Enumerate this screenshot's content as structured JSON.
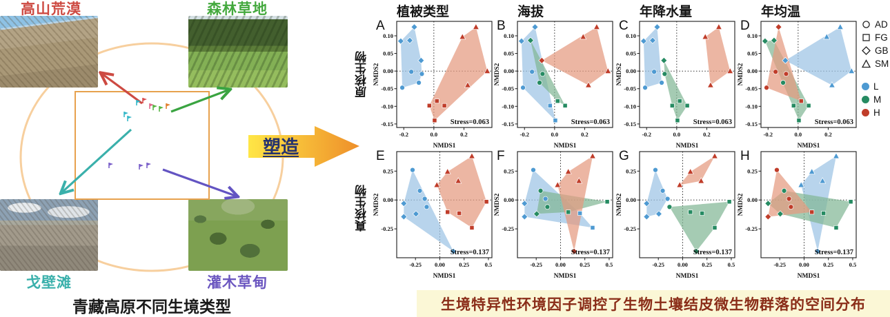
{
  "left_panel": {
    "caption": "青藏高原不同生境类型",
    "habitats": [
      {
        "name": "高山荒漠",
        "color": "#cd4a42",
        "position": "top-left"
      },
      {
        "name": "森林草地",
        "color": "#44a93e",
        "position": "top-right"
      },
      {
        "name": "戈壁滩",
        "color": "#3ab0ab",
        "position": "bottom-left"
      },
      {
        "name": "灌木草甸",
        "color": "#6b56c0",
        "position": "bottom-right"
      }
    ]
  },
  "arrow": {
    "label": "塑造",
    "gradient": [
      "#ffe646",
      "#ee8f2a"
    ],
    "text_color": "#26336e"
  },
  "charts": {
    "row_labels": [
      "原核生物",
      "真核生物"
    ],
    "col_titles": [
      "植被类型",
      "海拔",
      "年降水量",
      "年均温"
    ],
    "colors": {
      "L": "#4e9ad2",
      "M": "#268b62",
      "H": "#c03d2a"
    },
    "fills": {
      "L": "#9cc3e5",
      "M": "#82b795",
      "H": "#e59a7f"
    },
    "legend": {
      "shapes": [
        {
          "shape": "circle",
          "label": "AD"
        },
        {
          "shape": "square",
          "label": "FG"
        },
        {
          "shape": "diamond",
          "label": "GB"
        },
        {
          "shape": "triangle",
          "label": "SM"
        }
      ],
      "groups": [
        {
          "key": "L",
          "hex": "#4e9ad2"
        },
        {
          "key": "M",
          "hex": "#268b62"
        },
        {
          "key": "H",
          "hex": "#c03d2a"
        }
      ]
    }
  },
  "footer": {
    "caption": "生境特异性环境因子调控了生物土壤结皮微生物群落的空间分布"
  },
  "chart_data": [
    {
      "id": "A",
      "type": "scatter",
      "xlabel": "NMDS1",
      "ylabel": "NMDS2",
      "stress": "Stress=0.063",
      "xlim": [
        -0.247,
        0.386
      ],
      "ylim": [
        -0.16,
        0.141
      ],
      "xticks": [
        "-0.2",
        "0.0",
        "0.2"
      ],
      "yticks": [
        "0.10",
        "0.05",
        "0.00",
        "-0.05",
        "-0.10",
        "-0.15"
      ],
      "points": [
        [
          -0.22,
          0.085,
          "d",
          "L"
        ],
        [
          -0.16,
          0.087,
          "d",
          "L"
        ],
        [
          -0.13,
          0.125,
          "d",
          "L"
        ],
        [
          -0.085,
          0.03,
          "d",
          "L"
        ],
        [
          -0.15,
          -0.002,
          "o",
          "L"
        ],
        [
          -0.08,
          -0.008,
          "o",
          "L"
        ],
        [
          -0.1,
          -0.033,
          "o",
          "L"
        ],
        [
          -0.21,
          -0.047,
          "o",
          "L"
        ],
        [
          0.02,
          -0.085,
          "s",
          "H"
        ],
        [
          -0.03,
          -0.098,
          "s",
          "H"
        ],
        [
          0.07,
          -0.098,
          "s",
          "H"
        ],
        [
          0.005,
          -0.14,
          "s",
          "H"
        ],
        [
          0.19,
          0.097,
          "t",
          "H"
        ],
        [
          0.28,
          0.125,
          "t",
          "H"
        ],
        [
          0.355,
          0.0,
          "t",
          "H"
        ],
        [
          0.225,
          -0.04,
          "t",
          "H"
        ]
      ]
    },
    {
      "id": "B",
      "type": "scatter",
      "xlabel": "NMDS1",
      "ylabel": "NMDS2",
      "stress": "Stress=0.063",
      "xlim": [
        -0.247,
        0.386
      ],
      "ylim": [
        -0.16,
        0.141
      ],
      "xticks": [
        "-0.2",
        "0.0",
        "0.2"
      ],
      "yticks": [
        "0.10",
        "0.05",
        "0.00",
        "-0.05",
        "-0.10",
        "-0.15"
      ],
      "points": [
        [
          -0.22,
          0.085,
          "d",
          "L"
        ],
        [
          -0.16,
          0.087,
          "d",
          "M"
        ],
        [
          -0.13,
          0.125,
          "d",
          "L"
        ],
        [
          -0.085,
          0.03,
          "d",
          "H"
        ],
        [
          -0.15,
          -0.002,
          "o",
          "L"
        ],
        [
          -0.08,
          -0.008,
          "o",
          "M"
        ],
        [
          -0.1,
          -0.033,
          "o",
          "M"
        ],
        [
          -0.21,
          -0.047,
          "o",
          "L"
        ],
        [
          0.02,
          -0.085,
          "s",
          "M"
        ],
        [
          -0.03,
          -0.098,
          "s",
          "L"
        ],
        [
          0.07,
          -0.098,
          "s",
          "M"
        ],
        [
          0.005,
          -0.14,
          "s",
          "L"
        ],
        [
          0.19,
          0.097,
          "t",
          "H"
        ],
        [
          0.28,
          0.125,
          "t",
          "H"
        ],
        [
          0.355,
          0.0,
          "t",
          "H"
        ],
        [
          0.225,
          -0.04,
          "t",
          "H"
        ]
      ]
    },
    {
      "id": "C",
      "type": "scatter",
      "xlabel": "NMDS1",
      "ylabel": "NMDS2",
      "stress": "Stress=0.063",
      "xlim": [
        -0.247,
        0.386
      ],
      "ylim": [
        -0.16,
        0.141
      ],
      "xticks": [
        "-0.2",
        "0.0",
        "0.2"
      ],
      "yticks": [
        "0.10",
        "0.05",
        "0.00",
        "-0.05",
        "-0.10",
        "-0.15"
      ],
      "points": [
        [
          -0.22,
          0.085,
          "d",
          "L"
        ],
        [
          -0.16,
          0.087,
          "d",
          "L"
        ],
        [
          -0.13,
          0.125,
          "d",
          "L"
        ],
        [
          -0.085,
          0.03,
          "d",
          "M"
        ],
        [
          -0.15,
          -0.002,
          "o",
          "L"
        ],
        [
          -0.08,
          -0.008,
          "o",
          "M"
        ],
        [
          -0.1,
          -0.033,
          "o",
          "L"
        ],
        [
          -0.21,
          -0.047,
          "o",
          "L"
        ],
        [
          0.02,
          -0.085,
          "s",
          "M"
        ],
        [
          -0.03,
          -0.098,
          "s",
          "M"
        ],
        [
          0.07,
          -0.098,
          "s",
          "M"
        ],
        [
          0.005,
          -0.14,
          "s",
          "M"
        ],
        [
          0.19,
          0.097,
          "t",
          "H"
        ],
        [
          0.28,
          0.125,
          "t",
          "H"
        ],
        [
          0.355,
          0.0,
          "t",
          "H"
        ],
        [
          0.225,
          -0.04,
          "t",
          "H"
        ]
      ]
    },
    {
      "id": "D",
      "type": "scatter",
      "xlabel": "NMDS1",
      "ylabel": "NMDS2",
      "stress": "Stress=0.063",
      "xlim": [
        -0.247,
        0.386
      ],
      "ylim": [
        -0.16,
        0.141
      ],
      "xticks": [
        "-0.2",
        "0.0",
        "0.2"
      ],
      "yticks": [
        "0.10",
        "0.05",
        "0.00",
        "-0.05",
        "-0.10",
        "-0.15"
      ],
      "points": [
        [
          -0.22,
          0.085,
          "d",
          "M"
        ],
        [
          -0.16,
          0.087,
          "d",
          "M"
        ],
        [
          -0.13,
          0.125,
          "d",
          "H"
        ],
        [
          -0.085,
          0.03,
          "d",
          "L"
        ],
        [
          -0.15,
          -0.002,
          "o",
          "H"
        ],
        [
          -0.08,
          -0.008,
          "o",
          "H"
        ],
        [
          -0.1,
          -0.033,
          "o",
          "M"
        ],
        [
          -0.21,
          -0.047,
          "o",
          "H"
        ],
        [
          0.02,
          -0.085,
          "s",
          "H"
        ],
        [
          -0.03,
          -0.098,
          "s",
          "M"
        ],
        [
          0.07,
          -0.098,
          "s",
          "M"
        ],
        [
          0.005,
          -0.14,
          "s",
          "M"
        ],
        [
          0.19,
          0.097,
          "t",
          "L"
        ],
        [
          0.28,
          0.125,
          "t",
          "L"
        ],
        [
          0.355,
          0.0,
          "t",
          "L"
        ],
        [
          0.225,
          -0.04,
          "t",
          "L"
        ]
      ]
    },
    {
      "id": "E",
      "type": "scatter",
      "xlabel": "NMDS1",
      "ylabel": "NMDS2",
      "stress": "Stress=0.137",
      "xlim": [
        -0.443,
        0.536
      ],
      "ylim": [
        -0.5,
        0.419
      ],
      "xticks": [
        "-0.25",
        "0.00",
        "0.25",
        "0.5"
      ],
      "yticks": [
        "0.25",
        "0.00",
        "-0.25"
      ],
      "points": [
        [
          -0.28,
          0.26,
          "o",
          "L"
        ],
        [
          -0.205,
          0.08,
          "o",
          "L"
        ],
        [
          -0.155,
          0.01,
          "o",
          "L"
        ],
        [
          -0.135,
          -0.06,
          "o",
          "L"
        ],
        [
          -0.245,
          -0.12,
          "d",
          "L"
        ],
        [
          -0.37,
          -0.03,
          "d",
          "L"
        ],
        [
          -0.37,
          -0.145,
          "d",
          "L"
        ],
        [
          0.14,
          -0.445,
          "d",
          "L"
        ],
        [
          -0.03,
          0.13,
          "t",
          "H"
        ],
        [
          0.08,
          0.245,
          "t",
          "H"
        ],
        [
          0.19,
          0.165,
          "t",
          "H"
        ],
        [
          0.33,
          0.38,
          "t",
          "H"
        ],
        [
          0.08,
          -0.105,
          "s",
          "H"
        ],
        [
          0.2,
          -0.115,
          "s",
          "H"
        ],
        [
          0.33,
          -0.24,
          "s",
          "H"
        ],
        [
          0.48,
          -0.015,
          "s",
          "H"
        ]
      ]
    },
    {
      "id": "F",
      "type": "scatter",
      "xlabel": "NMDS1",
      "ylabel": "NMDS2",
      "stress": "Stress=0.137",
      "xlim": [
        -0.443,
        0.536
      ],
      "ylim": [
        -0.5,
        0.419
      ],
      "xticks": [
        "-0.25",
        "0.00",
        "0.25",
        "0.5"
      ],
      "yticks": [
        "0.25",
        "0.00",
        "-0.25"
      ],
      "points": [
        [
          -0.28,
          0.26,
          "o",
          "L"
        ],
        [
          -0.205,
          0.08,
          "o",
          "M"
        ],
        [
          -0.155,
          0.01,
          "o",
          "L"
        ],
        [
          -0.135,
          -0.06,
          "o",
          "M"
        ],
        [
          -0.245,
          -0.12,
          "d",
          "M"
        ],
        [
          -0.37,
          -0.03,
          "d",
          "L"
        ],
        [
          -0.37,
          -0.145,
          "d",
          "L"
        ],
        [
          0.14,
          -0.445,
          "d",
          "H"
        ],
        [
          -0.03,
          0.13,
          "t",
          "H"
        ],
        [
          0.08,
          0.245,
          "t",
          "H"
        ],
        [
          0.19,
          0.165,
          "t",
          "H"
        ],
        [
          0.33,
          0.38,
          "t",
          "H"
        ],
        [
          0.08,
          -0.105,
          "s",
          "M"
        ],
        [
          0.2,
          -0.115,
          "s",
          "L"
        ],
        [
          0.33,
          -0.24,
          "s",
          "L"
        ],
        [
          0.48,
          -0.015,
          "s",
          "M"
        ]
      ]
    },
    {
      "id": "G",
      "type": "scatter",
      "xlabel": "NMDS1",
      "ylabel": "NMDS2",
      "stress": "Stress=0.137",
      "xlim": [
        -0.443,
        0.536
      ],
      "ylim": [
        -0.5,
        0.419
      ],
      "xticks": [
        "-0.25",
        "0.00",
        "0.25",
        "0.5"
      ],
      "yticks": [
        "0.25",
        "0.00",
        "-0.25"
      ],
      "points": [
        [
          -0.28,
          0.26,
          "o",
          "L"
        ],
        [
          -0.205,
          0.08,
          "o",
          "L"
        ],
        [
          -0.155,
          0.01,
          "o",
          "L"
        ],
        [
          -0.135,
          -0.06,
          "o",
          "M"
        ],
        [
          -0.245,
          -0.12,
          "d",
          "L"
        ],
        [
          -0.37,
          -0.03,
          "d",
          "L"
        ],
        [
          -0.37,
          -0.145,
          "d",
          "L"
        ],
        [
          0.14,
          -0.445,
          "d",
          "M"
        ],
        [
          -0.03,
          0.13,
          "t",
          "H"
        ],
        [
          0.08,
          0.245,
          "t",
          "H"
        ],
        [
          0.19,
          0.165,
          "t",
          "H"
        ],
        [
          0.33,
          0.38,
          "t",
          "H"
        ],
        [
          0.08,
          -0.105,
          "s",
          "M"
        ],
        [
          0.2,
          -0.115,
          "s",
          "M"
        ],
        [
          0.33,
          -0.24,
          "s",
          "M"
        ],
        [
          0.48,
          -0.015,
          "s",
          "M"
        ]
      ]
    },
    {
      "id": "H",
      "type": "scatter",
      "xlabel": "NMDS1",
      "ylabel": "NMDS2",
      "stress": "Stress=0.137",
      "xlim": [
        -0.443,
        0.536
      ],
      "ylim": [
        -0.5,
        0.419
      ],
      "xticks": [
        "-0.25",
        "0.00",
        "0.25",
        "0.5"
      ],
      "yticks": [
        "0.25",
        "0.00",
        "-0.25"
      ],
      "points": [
        [
          -0.28,
          0.26,
          "o",
          "H"
        ],
        [
          -0.205,
          0.08,
          "o",
          "M"
        ],
        [
          -0.155,
          0.01,
          "o",
          "H"
        ],
        [
          -0.135,
          -0.06,
          "o",
          "H"
        ],
        [
          -0.245,
          -0.12,
          "d",
          "M"
        ],
        [
          -0.37,
          -0.03,
          "d",
          "M"
        ],
        [
          -0.37,
          -0.145,
          "d",
          "H"
        ],
        [
          0.14,
          -0.445,
          "d",
          "L"
        ],
        [
          -0.03,
          0.13,
          "t",
          "L"
        ],
        [
          0.08,
          0.245,
          "t",
          "L"
        ],
        [
          0.19,
          0.165,
          "t",
          "L"
        ],
        [
          0.33,
          0.38,
          "t",
          "L"
        ],
        [
          0.08,
          -0.105,
          "s",
          "H"
        ],
        [
          0.2,
          -0.115,
          "s",
          "M"
        ],
        [
          0.33,
          -0.24,
          "s",
          "M"
        ],
        [
          0.48,
          -0.015,
          "s",
          "M"
        ]
      ]
    }
  ]
}
